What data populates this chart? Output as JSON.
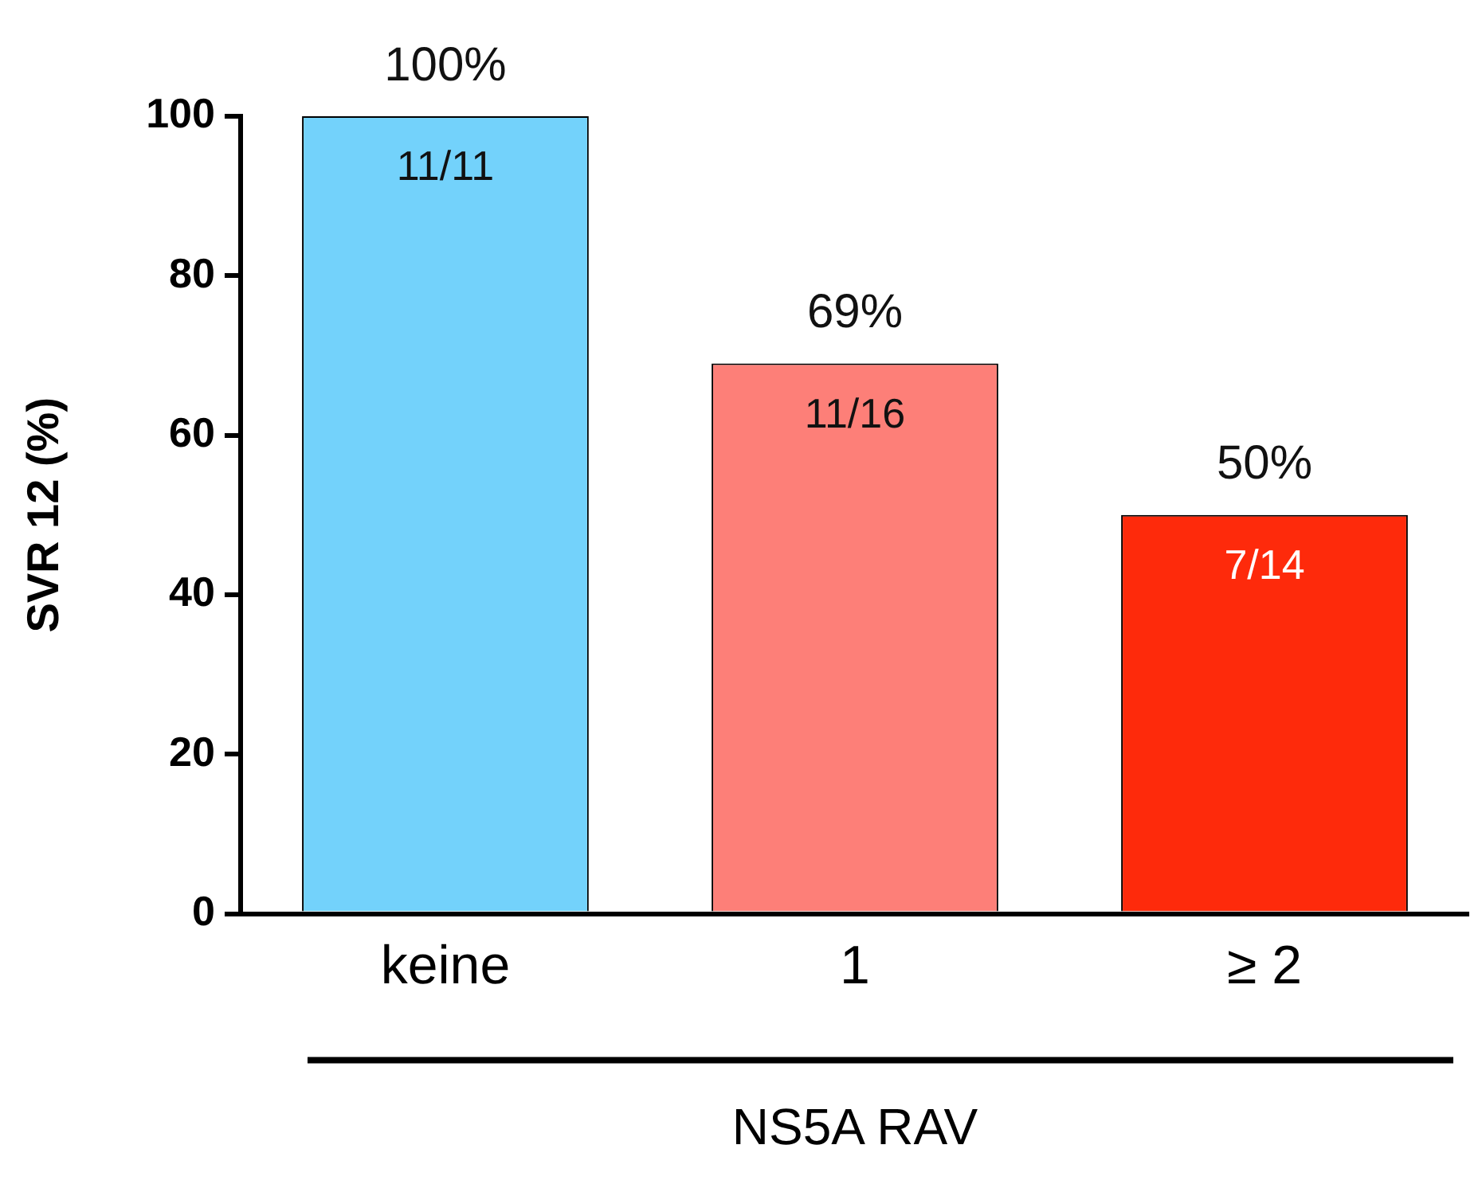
{
  "chart_data": {
    "type": "bar",
    "ylabel": "SVR 12 (%)",
    "xlabel": "NS5A RAV",
    "categories": [
      "keine",
      "1",
      "≥ 2"
    ],
    "values": [
      100,
      69,
      50
    ],
    "colors": [
      "#73d2fb",
      "#fd7f78",
      "#fe2a0b"
    ],
    "value_labels": [
      "100%",
      "69%",
      "50%"
    ],
    "annotations": [
      {
        "text": "11/11",
        "x": "keine",
        "y": 100
      },
      {
        "text": "11/16",
        "x": "1",
        "y": 69
      },
      {
        "text": "7/14",
        "x": "≥ 2",
        "y": 50
      }
    ],
    "ylim": [
      0,
      100
    ],
    "yticks": [
      0,
      20,
      40,
      60,
      80,
      100
    ],
    "grid": false,
    "legend": false
  }
}
